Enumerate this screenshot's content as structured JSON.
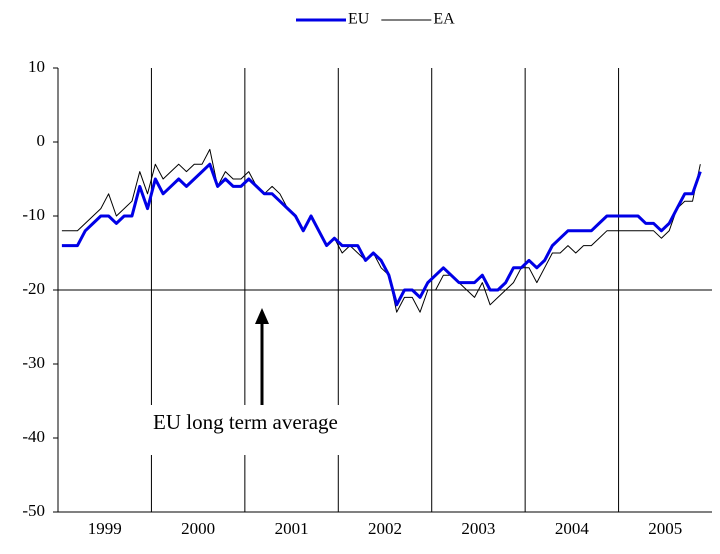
{
  "chart_data": {
    "type": "line",
    "categories": [
      "1999",
      null,
      null,
      null,
      null,
      null,
      null,
      null,
      null,
      null,
      null,
      null,
      "2000",
      null,
      null,
      null,
      null,
      null,
      null,
      null,
      null,
      null,
      null,
      null,
      "2001",
      null,
      null,
      null,
      null,
      null,
      null,
      null,
      null,
      null,
      null,
      null,
      "2002",
      null,
      null,
      null,
      null,
      null,
      null,
      null,
      null,
      null,
      null,
      null,
      "2003",
      null,
      null,
      null,
      null,
      null,
      null,
      null,
      null,
      null,
      null,
      null,
      "2004",
      null,
      null,
      null,
      null,
      null,
      null,
      null,
      null,
      null,
      null,
      null,
      "2005",
      null,
      null,
      null,
      null,
      null,
      null,
      null,
      null,
      null,
      null
    ],
    "series": [
      {
        "name": "EU",
        "color": "#0000e6",
        "values": [
          -14,
          -14,
          -14,
          -12,
          -11,
          -10,
          -10,
          -11,
          -10,
          -10,
          -6,
          -9,
          -5,
          -7,
          -6,
          -5,
          -6,
          -5,
          -4,
          -3,
          -6,
          -5,
          -6,
          -6,
          -5,
          -6,
          -7,
          -7,
          -8,
          -9,
          -10,
          -12,
          -10,
          -12,
          -14,
          -13,
          -14,
          -14,
          -14,
          -16,
          -15,
          -16,
          -18,
          -22,
          -20,
          -20,
          -21,
          -19,
          -18,
          -17,
          -18,
          -19,
          -19,
          -19,
          -18,
          -20,
          -20,
          -19,
          -17,
          -17,
          -16,
          -17,
          -16,
          -14,
          -13,
          -12,
          -12,
          -12,
          -12,
          -11,
          -10,
          -10,
          -10,
          -10,
          -10,
          -11,
          -11,
          -12,
          -11,
          -9,
          -7,
          -7,
          -4
        ]
      },
      {
        "name": "EA",
        "color": "#000000",
        "values": [
          -12,
          -12,
          -12,
          -11,
          -10,
          -9,
          -7,
          -10,
          -9,
          -8,
          -4,
          -7,
          -3,
          -5,
          -4,
          -3,
          -4,
          -3,
          -3,
          -1,
          -6,
          -4,
          -5,
          -5,
          -4,
          -6,
          -7,
          -6,
          -7,
          -9,
          -10,
          -12,
          -10,
          -12,
          -14,
          -13,
          -15,
          -14,
          -15,
          -16,
          -15,
          -17,
          -18,
          -23,
          -21,
          -21,
          -23,
          -20,
          -20,
          -18,
          -18,
          -19,
          -20,
          -21,
          -19,
          -22,
          -21,
          -20,
          -19,
          -17,
          -17,
          -19,
          -17,
          -15,
          -15,
          -14,
          -15,
          -14,
          -14,
          -13,
          -12,
          -12,
          -12,
          -12,
          -12,
          -12,
          -12,
          -13,
          -12,
          -9,
          -8,
          -8,
          -3
        ]
      }
    ],
    "ylim": [
      -50,
      10
    ],
    "yticks": [
      10,
      0,
      -10,
      -20,
      -30,
      -40,
      -50
    ],
    "reference_line": -20,
    "annotation": "EU long term  average",
    "legend": "top"
  }
}
